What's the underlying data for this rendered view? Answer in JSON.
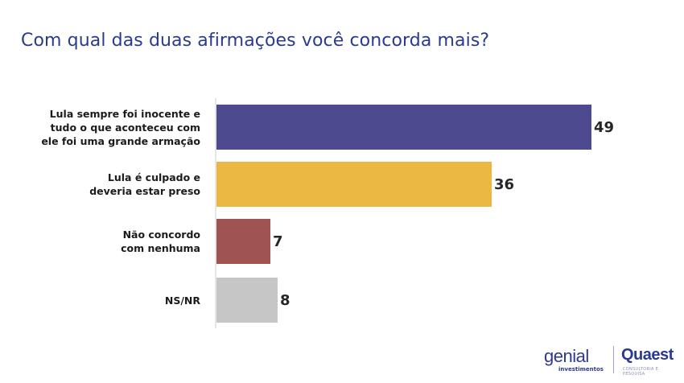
{
  "header": {
    "title": "Com qual das duas afirmações você concorda mais?"
  },
  "chart_data": {
    "type": "bar",
    "orientation": "horizontal",
    "title": "Com qual das duas afirmações você concorda mais?",
    "categories": [
      "Lula sempre foi inocente e tudo o que aconteceu com ele foi uma grande armação",
      "Lula é culpado e deveria estar preso",
      "Não concordo com nenhuma",
      "NS/NR"
    ],
    "values": [
      49,
      36,
      7,
      8
    ],
    "colors": [
      "#4e4a8f",
      "#ebb843",
      "#a05452",
      "#c6c6c6"
    ],
    "xlabel": "",
    "ylabel": "",
    "unit": "%",
    "grid": false,
    "legend": null,
    "data_labels": true
  },
  "rows": [
    {
      "label_lines": [
        "Lula sempre foi inocente e",
        "tudo o que aconteceu com",
        "ele foi uma grande armação"
      ],
      "value": "49"
    },
    {
      "label_lines": [
        "Lula é culpado e",
        "deveria estar preso"
      ],
      "value": "36"
    },
    {
      "label_lines": [
        "Não concordo",
        "com nenhuma"
      ],
      "value": "7"
    },
    {
      "label_lines": [
        "NS/NR"
      ],
      "value": "8"
    }
  ],
  "footer": {
    "logo1": "genial",
    "logo1_sub": "investimentos",
    "logo2": "Quaest",
    "logo2_sub": "CONSULTORIA E PESQUISA"
  }
}
